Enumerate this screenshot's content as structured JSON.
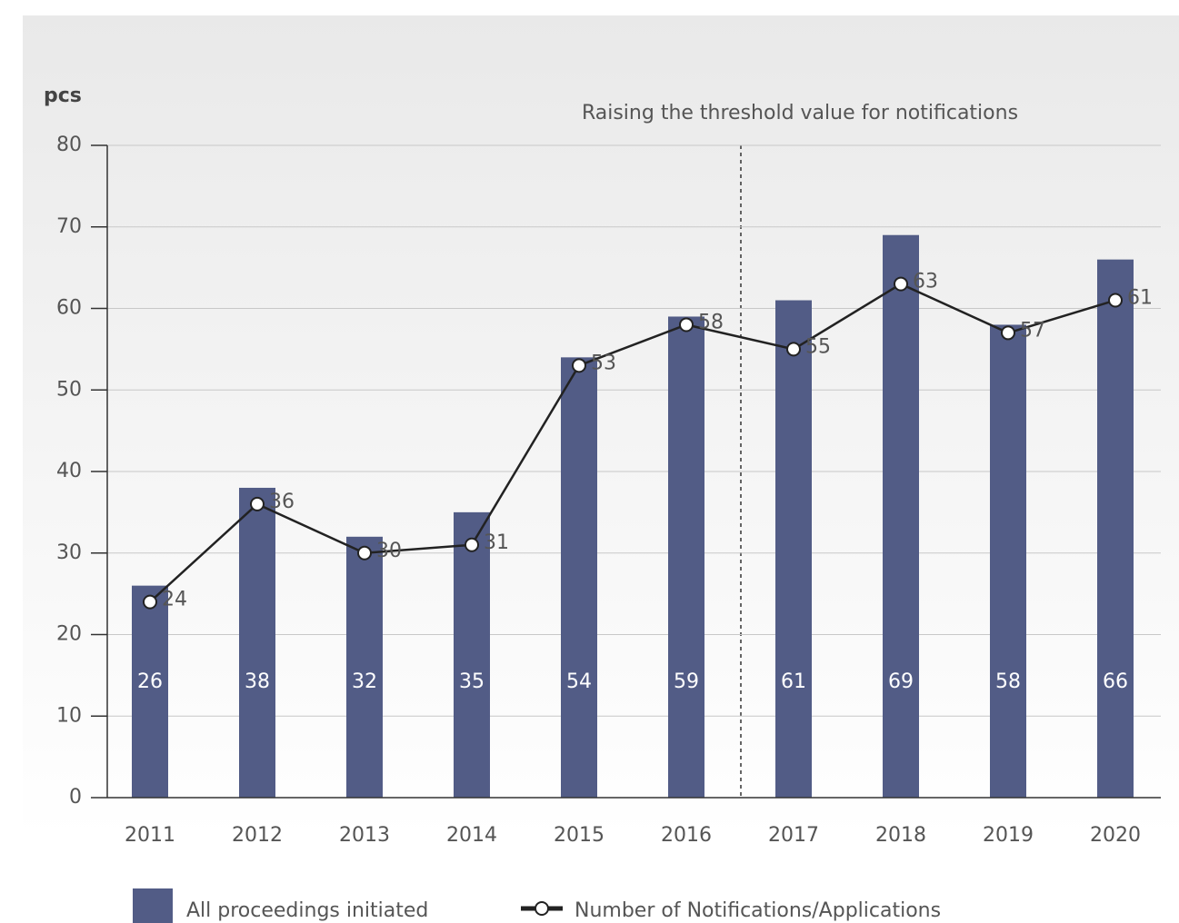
{
  "chart_data": {
    "type": "bar_line",
    "y_label": "pcs",
    "annotation": "Raising the threshold value for notifications",
    "categories": [
      "2011",
      "2012",
      "2013",
      "2014",
      "2015",
      "2016",
      "2017",
      "2018",
      "2019",
      "2020"
    ],
    "series": [
      {
        "name": "All proceedings initiated",
        "color": "#525c86",
        "kind": "bar",
        "values": [
          26,
          38,
          32,
          35,
          54,
          59,
          61,
          69,
          58,
          66
        ]
      },
      {
        "name": "Number of Notifications/Applications",
        "color": "#222222",
        "kind": "line",
        "values": [
          24,
          36,
          30,
          31,
          53,
          58,
          55,
          63,
          57,
          61
        ]
      }
    ],
    "ylim": [
      0,
      80
    ],
    "yticks": [
      0,
      10,
      20,
      30,
      40,
      50,
      60,
      70,
      80
    ],
    "grid": true
  }
}
